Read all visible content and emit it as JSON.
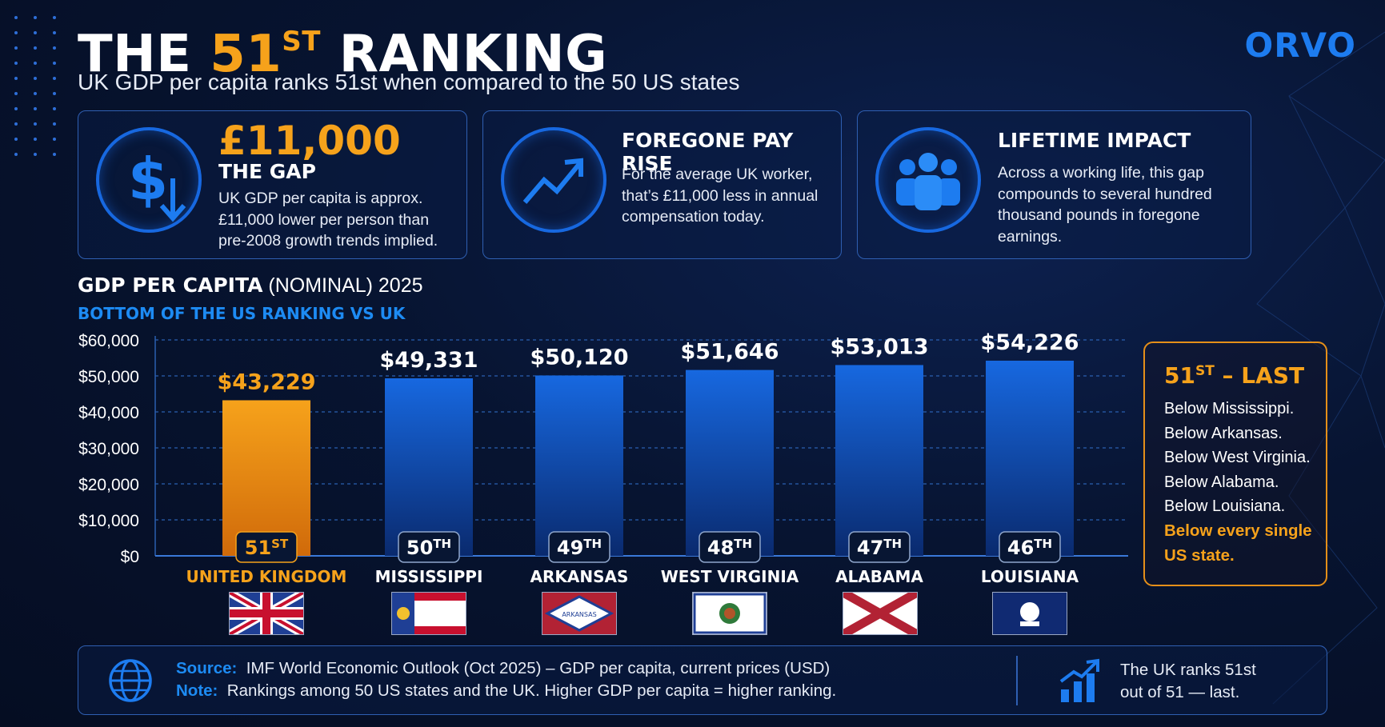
{
  "brand": {
    "logo": "ORVO",
    "accent": "#f6a21b",
    "blue": "#1768e0"
  },
  "header": {
    "title_pre": "THE ",
    "title_num": "51",
    "title_sup": "ST",
    "title_post": " RANKING",
    "subtitle": "UK GDP per capita ranks 51st when compared to the 50 US states"
  },
  "cards": [
    {
      "icon": "dollar-down-icon",
      "big": "£11,000",
      "title": "THE GAP",
      "lines": [
        "UK GDP per capita is approx.",
        "£11,000 lower per person than",
        "pre-2008 growth trends implied."
      ]
    },
    {
      "icon": "trend-up-icon",
      "title": "FOREGONE PAY RISE",
      "lines": [
        "For the average UK worker,",
        "that’s £11,000 less in annual",
        "compensation today."
      ]
    },
    {
      "icon": "people-icon",
      "title": "LIFETIME IMPACT",
      "lines": [
        "Across a working life, this gap",
        "compounds to several hundred",
        "thousand pounds in foregone",
        "earnings."
      ]
    }
  ],
  "chart_heading": {
    "bold": "GDP PER CAPITA",
    "rest": " (NOMINAL) 2025",
    "sub": "BOTTOM OF THE US RANKING VS UK"
  },
  "chart_data": {
    "type": "bar",
    "title": "GDP PER CAPITA (NOMINAL) 2025",
    "subtitle": "BOTTOM OF THE US RANKING VS UK",
    "categories": [
      "UNITED KINGDOM",
      "MISSISSIPPI",
      "ARKANSAS",
      "WEST VIRGINIA",
      "ALABAMA",
      "LOUISIANA"
    ],
    "values": [
      43229,
      49331,
      50120,
      51646,
      53013,
      54226
    ],
    "value_labels": [
      "$43,229",
      "$49,331",
      "$50,120",
      "$51,646",
      "$53,013",
      "$54,226"
    ],
    "ranks": [
      {
        "n": "51",
        "s": "ST"
      },
      {
        "n": "50",
        "s": "TH"
      },
      {
        "n": "49",
        "s": "TH"
      },
      {
        "n": "48",
        "s": "TH"
      },
      {
        "n": "47",
        "s": "TH"
      },
      {
        "n": "46",
        "s": "TH"
      }
    ],
    "highlight_index": 0,
    "colors": {
      "highlight": "#f6a21b",
      "bar": "#1768e0",
      "grid": "#2a5fb0"
    },
    "yticks": [
      "$0",
      "$10,000",
      "$20,000",
      "$30,000",
      "$40,000",
      "$50,000",
      "$60,000"
    ],
    "ylim": [
      0,
      60000
    ],
    "grid": true
  },
  "flags": [
    "uk-flag",
    "mississippi-flag",
    "arkansas-flag",
    "west-virginia-flag",
    "alabama-flag",
    "louisiana-flag"
  ],
  "side": {
    "title_num": "51",
    "title_sup": "ST",
    "title_rest": " – LAST",
    "lines": [
      "Below Mississippi.",
      "Below Arkansas.",
      "Below West Virginia.",
      "Below Alabama.",
      "Below Louisiana."
    ],
    "highlight": [
      "Below every single",
      "US state."
    ]
  },
  "footer": {
    "source_label": "Source:",
    "source_text": "IMF World Economic Outlook (Oct 2025) – GDP per capita, current prices (USD)",
    "note_label": "Note:",
    "note_text": "Rankings among 50 US states and the UK. Higher GDP per capita = higher ranking.",
    "right_lines": [
      "The UK ranks 51st",
      "out of 51 — last."
    ]
  }
}
